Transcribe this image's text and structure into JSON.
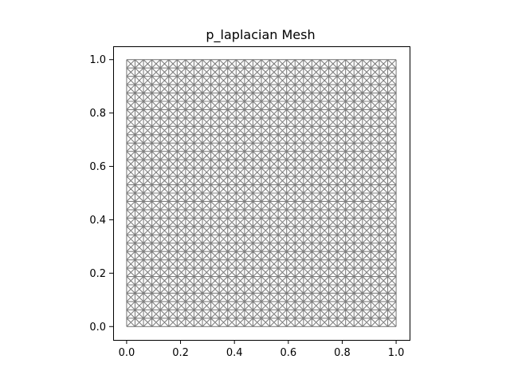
{
  "figure": {
    "title": "p_laplacian Mesh"
  },
  "chart_data": {
    "type": "mesh",
    "title": "p_laplacian Mesh",
    "xlabel": "",
    "ylabel": "",
    "xlim": [
      -0.05,
      1.05
    ],
    "ylim": [
      -0.05,
      1.05
    ],
    "x_ticks": [
      0.0,
      0.2,
      0.4,
      0.6,
      0.8,
      1.0
    ],
    "y_ticks": [
      0.0,
      0.2,
      0.4,
      0.6,
      0.8,
      1.0
    ],
    "x_tick_labels": [
      "0.0",
      "0.2",
      "0.4",
      "0.6",
      "0.8",
      "1.0"
    ],
    "y_tick_labels": [
      "0.0",
      "0.2",
      "0.4",
      "0.6",
      "0.8",
      "1.0"
    ],
    "mesh": {
      "domain_x": [
        0.0,
        1.0
      ],
      "domain_y": [
        0.0,
        1.0
      ],
      "cells_x": 32,
      "cells_y": 32,
      "diagonals": "crossed",
      "edge_color": "#808080"
    },
    "grid": false,
    "legend": "none"
  }
}
